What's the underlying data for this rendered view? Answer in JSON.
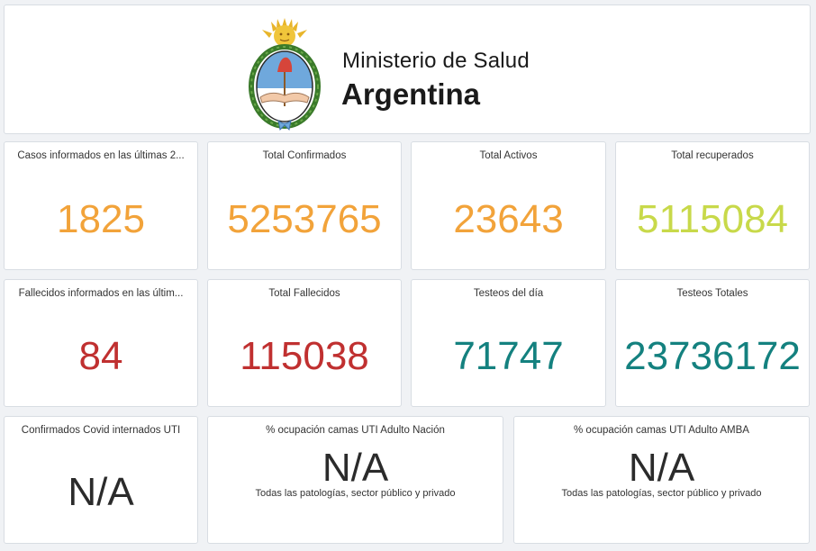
{
  "header": {
    "ministry": "Ministerio de Salud",
    "country": "Argentina"
  },
  "cards": [
    {
      "title": "Casos informados en las últimas 2...",
      "value": "1825",
      "color": "#f2a33a"
    },
    {
      "title": "Total Confirmados",
      "value": "5253765",
      "color": "#f2a33a"
    },
    {
      "title": "Total Activos",
      "value": "23643",
      "color": "#f2a33a"
    },
    {
      "title": "Total recuperados",
      "value": "5115084",
      "color": "#c8d94a"
    },
    {
      "title": "Fallecidos informados en las últim...",
      "value": "84",
      "color": "#c03030"
    },
    {
      "title": "Total Fallecidos",
      "value": "115038",
      "color": "#c03030"
    },
    {
      "title": "Testeos del día",
      "value": "71747",
      "color": "#14817f"
    },
    {
      "title": "Testeos Totales",
      "value": "23736172",
      "color": "#14817f"
    },
    {
      "title": "Confirmados Covid internados UTI",
      "value": "N/A",
      "color": "#2b2b2b"
    },
    {
      "title": "% ocupación camas UTI Adulto Nación",
      "value": "N/A",
      "subtitle": "Todas las patologías, sector público y privado",
      "color": "#2b2b2b"
    },
    {
      "title": "% ocupación camas UTI Adulto AMBA",
      "value": "N/A",
      "subtitle": "Todas las patologías, sector público y privado",
      "color": "#2b2b2b"
    }
  ]
}
